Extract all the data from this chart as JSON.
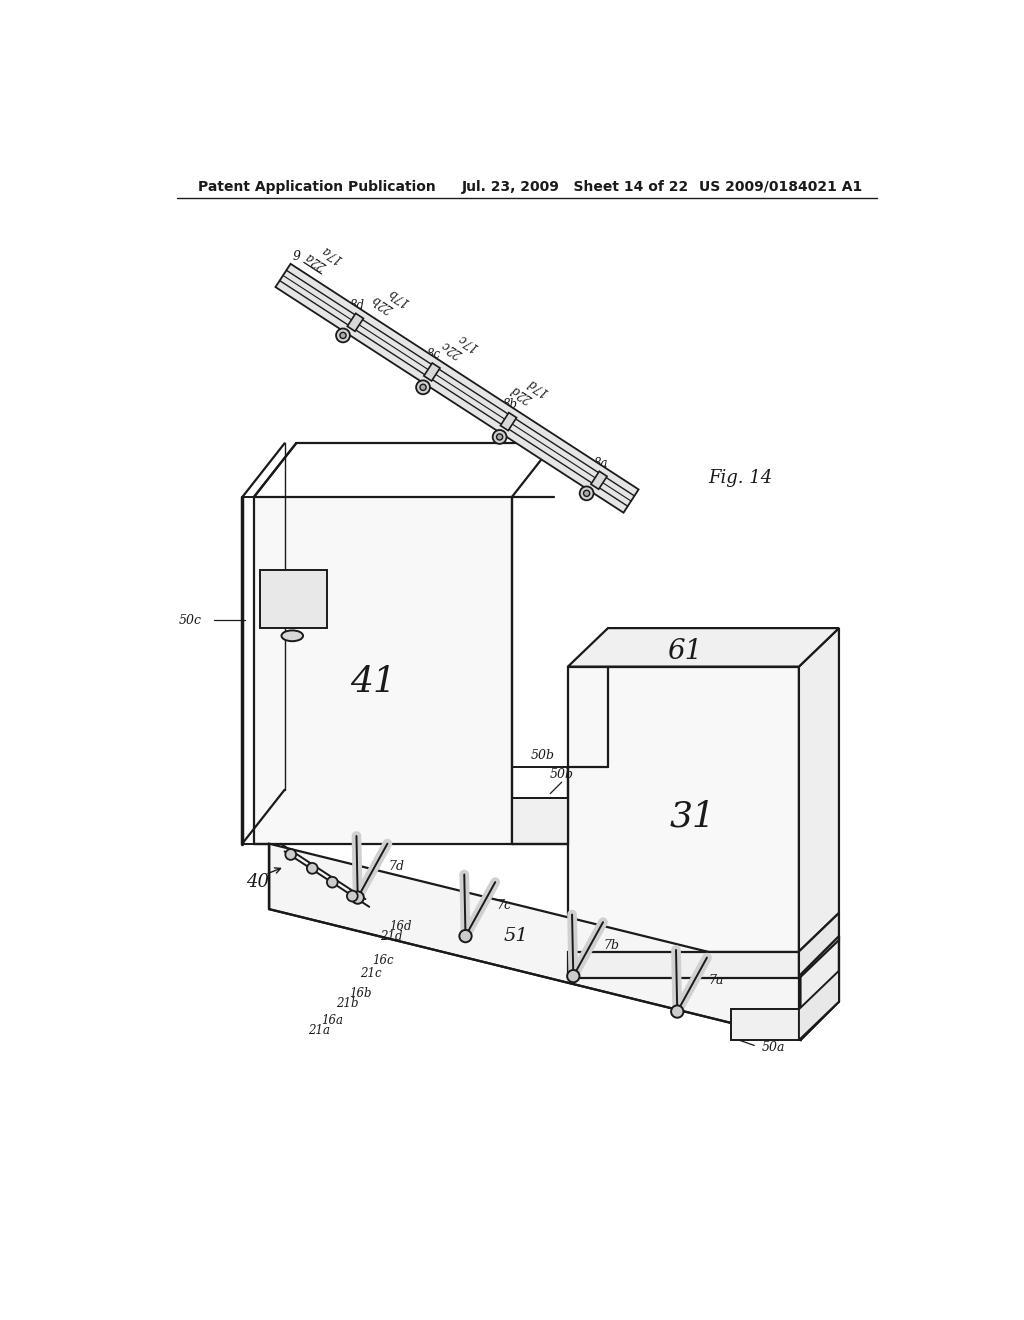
{
  "bg_color": "#ffffff",
  "header_left": "Patent Application Publication",
  "header_mid": "Jul. 23, 2009   Sheet 14 of 22",
  "header_right": "US 2009/0184021 A1",
  "fig_label": "Fig. 14",
  "lc": "#1a1a1a"
}
